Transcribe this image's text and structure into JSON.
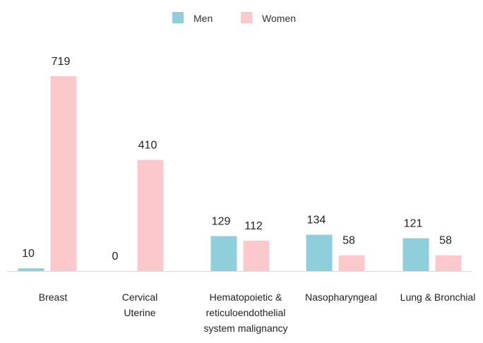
{
  "chart_data": {
    "type": "bar",
    "title": "",
    "xlabel": "",
    "ylabel": "",
    "categories": [
      [
        "Breast"
      ],
      [
        "Cervical",
        "Uterine"
      ],
      [
        "Hematopoietic &",
        "reticuloendothelial",
        "system malignancy"
      ],
      [
        "Nasopharyngeal"
      ],
      [
        "Lung & Bronchial"
      ]
    ],
    "series": [
      {
        "name": "Men",
        "color": "#8ecfdb",
        "values": [
          10,
          0,
          129,
          134,
          121
        ]
      },
      {
        "name": "Women",
        "color": "#fbc8cc",
        "values": [
          719,
          410,
          112,
          58,
          58
        ]
      }
    ],
    "ylim": [
      0,
      719
    ],
    "grid": false,
    "legend_position": "top-center",
    "y_axis_visible": false
  }
}
